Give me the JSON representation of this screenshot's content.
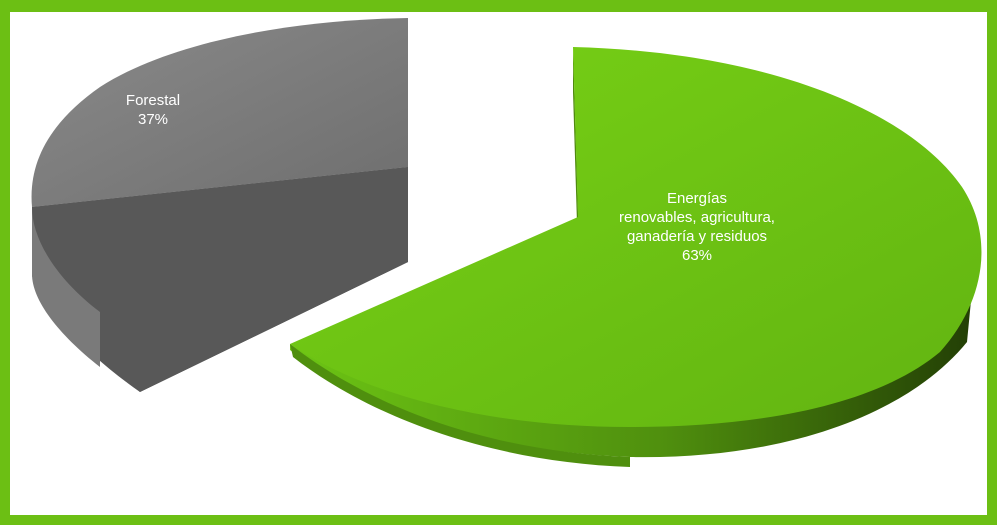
{
  "chart_data": {
    "type": "pie",
    "style": "3d-exploded",
    "slices": [
      {
        "label_lines": [
          "Forestal"
        ],
        "value": 37,
        "value_label": "37%",
        "color": "#7d7d7d"
      },
      {
        "label_lines": [
          "Energías",
          "renovables, agricultura,",
          "ganadería y residuos"
        ],
        "value": 63,
        "value_label": "63%",
        "color": "#6ec712"
      }
    ]
  },
  "colors": {
    "border": "#6cbf14",
    "background": "#ffffff"
  }
}
